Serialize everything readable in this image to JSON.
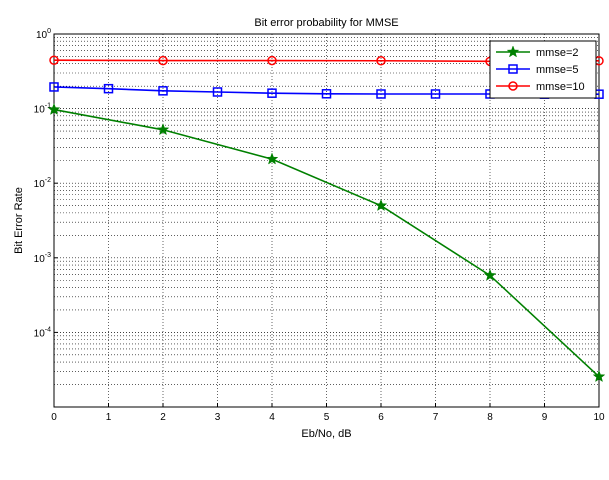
{
  "chart_data": {
    "type": "line",
    "title": "Bit error probability for MMSE",
    "xlabel": "Eb/No, dB",
    "ylabel": "Bit Error Rate",
    "xlim": [
      0,
      10
    ],
    "ylim": [
      1e-05,
      1
    ],
    "yscale": "log",
    "grid": true,
    "legend_position": "top-right",
    "x_ticks": [
      "0",
      "1",
      "2",
      "3",
      "4",
      "5",
      "6",
      "7",
      "8",
      "9",
      "10"
    ],
    "y_ticks": [
      {
        "base": "10",
        "exp": "0"
      },
      {
        "base": "10",
        "exp": "-1"
      },
      {
        "base": "10",
        "exp": "-2"
      },
      {
        "base": "10",
        "exp": "-3"
      },
      {
        "base": "10",
        "exp": "-4"
      }
    ],
    "series": [
      {
        "name": "mmse=2",
        "color": "#008000",
        "marker": "star",
        "x": [
          0,
          2,
          4,
          6,
          8,
          10
        ],
        "y": [
          0.097,
          0.052,
          0.021,
          0.005,
          0.00058,
          2.55e-05
        ]
      },
      {
        "name": "mmse=5",
        "color": "#0000ff",
        "marker": "square",
        "x": [
          0,
          1,
          2,
          3,
          4,
          5,
          6,
          7,
          8,
          9,
          10
        ],
        "y": [
          0.195,
          0.185,
          0.173,
          0.167,
          0.161,
          0.158,
          0.157,
          0.157,
          0.157,
          0.156,
          0.156
        ]
      },
      {
        "name": "mmse=10",
        "color": "#ff0000",
        "marker": "circle",
        "x": [
          0,
          2,
          4,
          6,
          8,
          10
        ],
        "y": [
          0.445,
          0.44,
          0.44,
          0.438,
          0.43,
          0.437
        ]
      }
    ]
  }
}
